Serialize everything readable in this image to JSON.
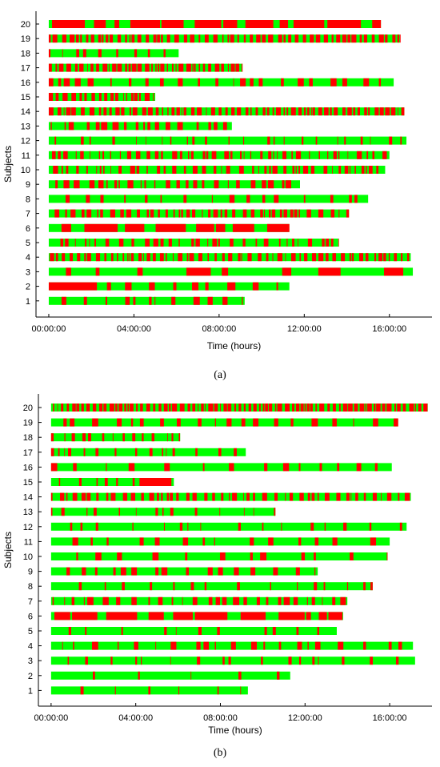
{
  "colors": {
    "active": "#00ff00",
    "inactive": "#ff0000",
    "axis": "#000000"
  },
  "chart_data": [
    {
      "type": "timeline",
      "caption": "(a)",
      "xlabel": "Time (hours)",
      "ylabel": "Subjects",
      "xlim_hours": [
        -0.6,
        18.0
      ],
      "xticks": [
        "00:00:00",
        "04:00:00",
        "08:00:00",
        "12:00:00",
        "16:00:00"
      ],
      "xtick_hours": [
        0,
        4,
        8,
        12,
        16
      ],
      "subjects": [
        "1",
        "2",
        "3",
        "4",
        "5",
        "6",
        "7",
        "8",
        "9",
        "10",
        "11",
        "12",
        "13",
        "14",
        "15",
        "16",
        "17",
        "18",
        "19",
        "20"
      ],
      "series": [
        {
          "name": "1",
          "end_hours": 9.2,
          "red_fraction": 0.2,
          "pattern": "mixed"
        },
        {
          "name": "2",
          "end_hours": 11.3,
          "red_fraction": 0.25,
          "pattern": "red-start"
        },
        {
          "name": "3",
          "end_hours": 17.1,
          "red_fraction": 0.3,
          "pattern": "long-red-blocks"
        },
        {
          "name": "4",
          "end_hours": 17.0,
          "red_fraction": 0.45,
          "pattern": "dense"
        },
        {
          "name": "5",
          "end_hours": 13.6,
          "red_fraction": 0.3,
          "pattern": "dense"
        },
        {
          "name": "6",
          "end_hours": 11.3,
          "red_fraction": 0.7,
          "pattern": "mostly-red"
        },
        {
          "name": "7",
          "end_hours": 14.1,
          "red_fraction": 0.4,
          "pattern": "dense"
        },
        {
          "name": "8",
          "end_hours": 15.0,
          "red_fraction": 0.2,
          "pattern": "mixed"
        },
        {
          "name": "9",
          "end_hours": 11.8,
          "red_fraction": 0.35,
          "pattern": "mixed"
        },
        {
          "name": "10",
          "end_hours": 15.8,
          "red_fraction": 0.35,
          "pattern": "dense"
        },
        {
          "name": "11",
          "end_hours": 16.0,
          "red_fraction": 0.35,
          "pattern": "dense"
        },
        {
          "name": "12",
          "end_hours": 16.8,
          "red_fraction": 0.12,
          "pattern": "sparse"
        },
        {
          "name": "13",
          "end_hours": 8.6,
          "red_fraction": 0.3,
          "pattern": "mixed"
        },
        {
          "name": "14",
          "end_hours": 16.7,
          "red_fraction": 0.5,
          "pattern": "dense"
        },
        {
          "name": "15",
          "end_hours": 5.0,
          "red_fraction": 0.5,
          "pattern": "dense"
        },
        {
          "name": "16",
          "end_hours": 16.2,
          "red_fraction": 0.25,
          "pattern": "mixed"
        },
        {
          "name": "17",
          "end_hours": 9.1,
          "red_fraction": 0.55,
          "pattern": "dense"
        },
        {
          "name": "18",
          "end_hours": 6.1,
          "red_fraction": 0.15,
          "pattern": "sparse"
        },
        {
          "name": "19",
          "end_hours": 16.5,
          "red_fraction": 0.5,
          "pattern": "dense"
        },
        {
          "name": "20",
          "end_hours": 15.6,
          "red_fraction": 0.75,
          "pattern": "mostly-red"
        }
      ]
    },
    {
      "type": "timeline",
      "caption": "(b)",
      "xlabel": "Time (hours)",
      "ylabel": "Subjects",
      "xlim_hours": [
        -0.6,
        18.0
      ],
      "xticks": [
        "00:00:00",
        "04:00:00",
        "08:00:00",
        "12:00:00",
        "16:00:00"
      ],
      "xtick_hours": [
        0,
        4,
        8,
        12,
        16
      ],
      "subjects": [
        "1",
        "2",
        "3",
        "4",
        "5",
        "6",
        "7",
        "8",
        "9",
        "10",
        "11",
        "12",
        "13",
        "14",
        "15",
        "16",
        "17",
        "18",
        "19",
        "20"
      ],
      "series": [
        {
          "name": "1",
          "end_hours": 9.3,
          "red_fraction": 0.08,
          "pattern": "sparse"
        },
        {
          "name": "2",
          "end_hours": 11.3,
          "red_fraction": 0.05,
          "pattern": "sparse"
        },
        {
          "name": "3",
          "end_hours": 17.2,
          "red_fraction": 0.1,
          "pattern": "sparse"
        },
        {
          "name": "4",
          "end_hours": 17.1,
          "red_fraction": 0.2,
          "pattern": "mixed"
        },
        {
          "name": "5",
          "end_hours": 13.5,
          "red_fraction": 0.06,
          "pattern": "sparse"
        },
        {
          "name": "6",
          "end_hours": 13.8,
          "red_fraction": 0.7,
          "pattern": "mostly-red"
        },
        {
          "name": "7",
          "end_hours": 14.0,
          "red_fraction": 0.35,
          "pattern": "mixed"
        },
        {
          "name": "8",
          "end_hours": 15.2,
          "red_fraction": 0.1,
          "pattern": "sparse"
        },
        {
          "name": "9",
          "end_hours": 12.6,
          "red_fraction": 0.25,
          "pattern": "mixed"
        },
        {
          "name": "10",
          "end_hours": 15.9,
          "red_fraction": 0.15,
          "pattern": "mixed"
        },
        {
          "name": "11",
          "end_hours": 16.0,
          "red_fraction": 0.15,
          "pattern": "mixed"
        },
        {
          "name": "12",
          "end_hours": 16.8,
          "red_fraction": 0.08,
          "pattern": "sparse"
        },
        {
          "name": "13",
          "end_hours": 10.6,
          "red_fraction": 0.12,
          "pattern": "sparse"
        },
        {
          "name": "14",
          "end_hours": 17.0,
          "red_fraction": 0.4,
          "pattern": "dense"
        },
        {
          "name": "15",
          "end_hours": 5.8,
          "red_fraction": 0.25,
          "pattern": "red-end"
        },
        {
          "name": "16",
          "end_hours": 16.1,
          "red_fraction": 0.15,
          "pattern": "mixed"
        },
        {
          "name": "17",
          "end_hours": 9.2,
          "red_fraction": 0.12,
          "pattern": "sparse"
        },
        {
          "name": "18",
          "end_hours": 6.1,
          "red_fraction": 0.2,
          "pattern": "sparse"
        },
        {
          "name": "19",
          "end_hours": 16.4,
          "red_fraction": 0.25,
          "pattern": "mixed"
        },
        {
          "name": "20",
          "end_hours": 17.8,
          "red_fraction": 0.6,
          "pattern": "dense"
        }
      ]
    }
  ]
}
